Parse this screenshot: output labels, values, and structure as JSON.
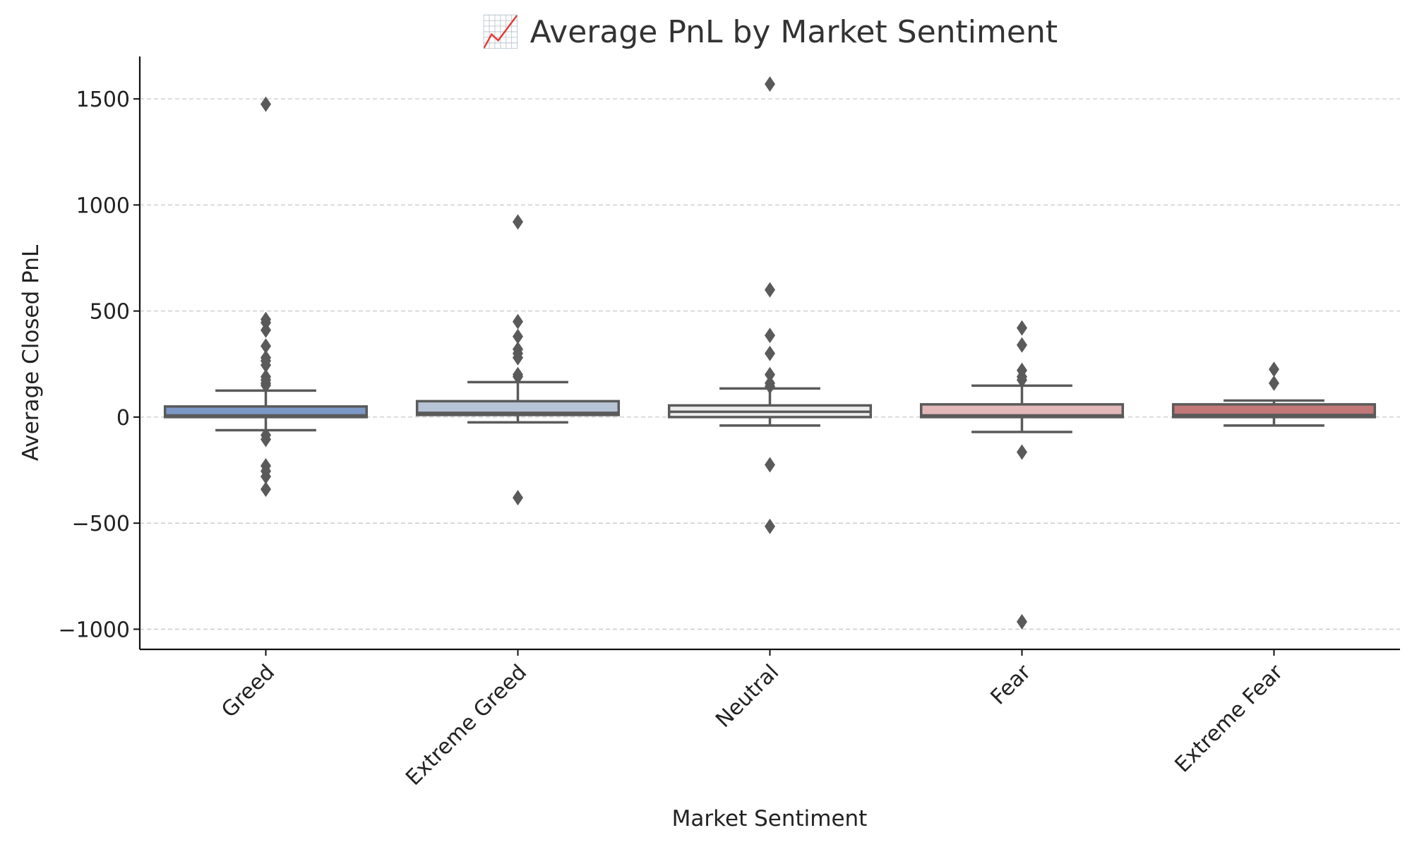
{
  "chart_data": {
    "type": "box",
    "title": "📈 Average PnL by Market Sentiment",
    "xlabel": "Market Sentiment",
    "ylabel": "Average Closed PnL",
    "ylim": [
      -1095,
      1700
    ],
    "y_ticks": [
      1500,
      1000,
      500,
      0,
      -500,
      -1000
    ],
    "y_tick_labels": [
      "1500",
      "1000",
      "500",
      "0",
      "−500",
      "−1000"
    ],
    "grid": "horizontal dashed",
    "categories": [
      "Greed",
      "Extreme Greed",
      "Neutral",
      "Fear",
      "Extreme Fear"
    ],
    "colors": [
      "#7b98c6",
      "#b7c4d6",
      "#ececec",
      "#e2b8b8",
      "#c27878"
    ],
    "boxes": [
      {
        "name": "Greed",
        "q1": 0,
        "median": 8,
        "q3": 50,
        "whisker_low": -62,
        "whisker_high": 125,
        "outliers": [
          1475,
          460,
          445,
          410,
          335,
          280,
          265,
          245,
          190,
          175,
          160,
          150,
          -85,
          -105,
          -230,
          -255,
          -280,
          -340
        ]
      },
      {
        "name": "Extreme Greed",
        "q1": 10,
        "median": 20,
        "q3": 75,
        "whisker_low": -25,
        "whisker_high": 165,
        "outliers": [
          920,
          450,
          380,
          320,
          300,
          280,
          200,
          190,
          -380
        ]
      },
      {
        "name": "Neutral",
        "q1": 0,
        "median": 25,
        "q3": 55,
        "whisker_low": -40,
        "whisker_high": 135,
        "outliers": [
          1570,
          600,
          385,
          300,
          200,
          160,
          145,
          -225,
          -515
        ]
      },
      {
        "name": "Fear",
        "q1": 0,
        "median": 8,
        "q3": 60,
        "whisker_low": -70,
        "whisker_high": 148,
        "outliers": [
          420,
          340,
          220,
          190,
          175,
          -165,
          -965
        ]
      },
      {
        "name": "Extreme Fear",
        "q1": 0,
        "median": 10,
        "q3": 60,
        "whisker_low": -40,
        "whisker_high": 78,
        "outliers": [
          225,
          160
        ]
      }
    ]
  }
}
